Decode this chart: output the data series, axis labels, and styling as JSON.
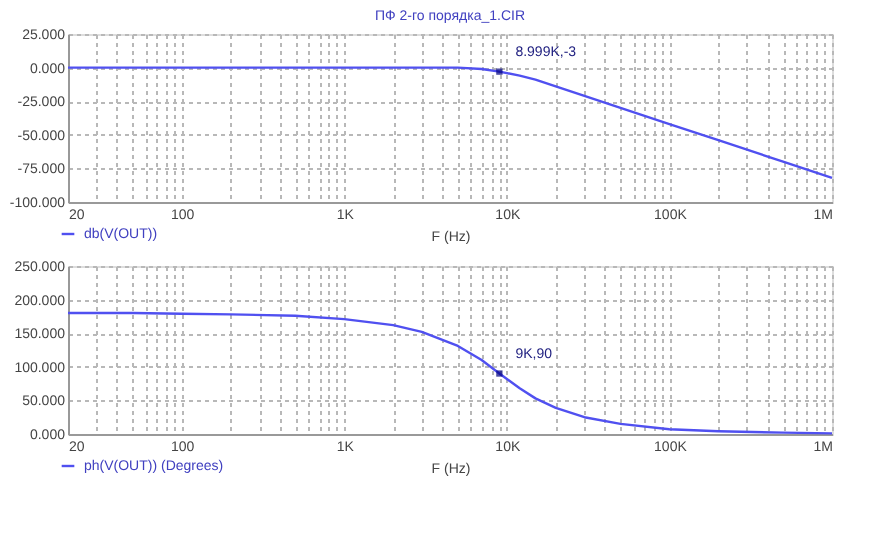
{
  "chart_data": [
    {
      "type": "line",
      "title": "ПФ 2-го порядка_1.CIR",
      "xlabel": "F (Hz)",
      "log": "x",
      "grid": true,
      "legend": "bottom left",
      "x": [
        20,
        50,
        100,
        200,
        500,
        1000,
        2000,
        3000,
        5000,
        7000,
        9000,
        12000,
        15000,
        20000,
        30000,
        50000,
        100000,
        200000,
        500000,
        1000000
      ],
      "series": [
        {
          "name": "db(V(OUT))",
          "color": "#5050f0",
          "values": [
            0,
            0,
            0,
            0,
            0,
            0,
            0,
            0,
            0,
            -1,
            -3,
            -6,
            -9,
            -14,
            -21,
            -30,
            -42,
            -54,
            -70,
            -82
          ]
        }
      ],
      "xlim": [
        20,
        1000000
      ],
      "xticks": [
        {
          "value": 20,
          "label": "20"
        },
        {
          "value": 30,
          "label": null
        },
        {
          "value": 40,
          "label": null
        },
        {
          "value": 50,
          "label": null
        },
        {
          "value": 60,
          "label": null
        },
        {
          "value": 70,
          "label": null
        },
        {
          "value": 80,
          "label": null
        },
        {
          "value": 90,
          "label": null
        },
        {
          "value": 100,
          "label": "100"
        },
        {
          "value": 200,
          "label": null
        },
        {
          "value": 300,
          "label": null
        },
        {
          "value": 400,
          "label": null
        },
        {
          "value": 500,
          "label": null
        },
        {
          "value": 600,
          "label": null
        },
        {
          "value": 700,
          "label": null
        },
        {
          "value": 800,
          "label": null
        },
        {
          "value": 900,
          "label": null
        },
        {
          "value": 1000,
          "label": "1K"
        },
        {
          "value": 2000,
          "label": null
        },
        {
          "value": 3000,
          "label": null
        },
        {
          "value": 4000,
          "label": null
        },
        {
          "value": 5000,
          "label": null
        },
        {
          "value": 6000,
          "label": null
        },
        {
          "value": 7000,
          "label": null
        },
        {
          "value": 8000,
          "label": null
        },
        {
          "value": 9000,
          "label": null
        },
        {
          "value": 10000,
          "label": "10K"
        },
        {
          "value": 20000,
          "label": null
        },
        {
          "value": 30000,
          "label": null
        },
        {
          "value": 40000,
          "label": null
        },
        {
          "value": 50000,
          "label": null
        },
        {
          "value": 60000,
          "label": null
        },
        {
          "value": 70000,
          "label": null
        },
        {
          "value": 80000,
          "label": null
        },
        {
          "value": 90000,
          "label": null
        },
        {
          "value": 100000,
          "label": "100K"
        },
        {
          "value": 200000,
          "label": null
        },
        {
          "value": 300000,
          "label": null
        },
        {
          "value": 400000,
          "label": null
        },
        {
          "value": 500000,
          "label": null
        },
        {
          "value": 600000,
          "label": null
        },
        {
          "value": 700000,
          "label": null
        },
        {
          "value": 800000,
          "label": null
        },
        {
          "value": 900000,
          "label": null
        },
        {
          "value": 1000000,
          "label": "1M"
        }
      ],
      "ylim": [
        -100,
        25
      ],
      "yticks": [
        {
          "value": -100,
          "label": "-100.000"
        },
        {
          "value": -75,
          "label": "-75.000"
        },
        {
          "value": -50,
          "label": "-50.000"
        },
        {
          "value": -25,
          "label": "-25.000"
        },
        {
          "value": 0,
          "label": "0.000"
        },
        {
          "value": 25,
          "label": "25.000"
        }
      ],
      "annotations": [
        {
          "text": "8.999K,-3",
          "x": 9000,
          "y": -3
        }
      ]
    },
    {
      "type": "line",
      "xlabel": "F (Hz)",
      "log": "x",
      "grid": true,
      "legend": "bottom left",
      "x": [
        20,
        50,
        100,
        200,
        500,
        1000,
        2000,
        3000,
        5000,
        7000,
        9000,
        12000,
        15000,
        20000,
        30000,
        50000,
        100000,
        200000,
        500000,
        1000000
      ],
      "series": [
        {
          "name": "ph(V(OUT)) (Degrees)",
          "color": "#5050f0",
          "values": [
            180,
            180,
            179,
            178,
            176,
            171,
            162,
            152,
            131,
            110,
            90,
            68,
            53,
            39,
            25,
            15,
            7,
            4,
            2,
            1
          ]
        }
      ],
      "xlim": [
        20,
        1000000
      ],
      "xticks": [
        {
          "value": 20,
          "label": "20"
        },
        {
          "value": 30,
          "label": null
        },
        {
          "value": 40,
          "label": null
        },
        {
          "value": 50,
          "label": null
        },
        {
          "value": 60,
          "label": null
        },
        {
          "value": 70,
          "label": null
        },
        {
          "value": 80,
          "label": null
        },
        {
          "value": 90,
          "label": null
        },
        {
          "value": 100,
          "label": "100"
        },
        {
          "value": 200,
          "label": null
        },
        {
          "value": 300,
          "label": null
        },
        {
          "value": 400,
          "label": null
        },
        {
          "value": 500,
          "label": null
        },
        {
          "value": 600,
          "label": null
        },
        {
          "value": 700,
          "label": null
        },
        {
          "value": 800,
          "label": null
        },
        {
          "value": 900,
          "label": null
        },
        {
          "value": 1000,
          "label": "1K"
        },
        {
          "value": 2000,
          "label": null
        },
        {
          "value": 3000,
          "label": null
        },
        {
          "value": 4000,
          "label": null
        },
        {
          "value": 5000,
          "label": null
        },
        {
          "value": 6000,
          "label": null
        },
        {
          "value": 7000,
          "label": null
        },
        {
          "value": 8000,
          "label": null
        },
        {
          "value": 9000,
          "label": null
        },
        {
          "value": 10000,
          "label": "10K"
        },
        {
          "value": 20000,
          "label": null
        },
        {
          "value": 30000,
          "label": null
        },
        {
          "value": 40000,
          "label": null
        },
        {
          "value": 50000,
          "label": null
        },
        {
          "value": 60000,
          "label": null
        },
        {
          "value": 70000,
          "label": null
        },
        {
          "value": 80000,
          "label": null
        },
        {
          "value": 90000,
          "label": null
        },
        {
          "value": 100000,
          "label": "100K"
        },
        {
          "value": 200000,
          "label": null
        },
        {
          "value": 300000,
          "label": null
        },
        {
          "value": 400000,
          "label": null
        },
        {
          "value": 500000,
          "label": null
        },
        {
          "value": 600000,
          "label": null
        },
        {
          "value": 700000,
          "label": null
        },
        {
          "value": 800000,
          "label": null
        },
        {
          "value": 900000,
          "label": null
        },
        {
          "value": 1000000,
          "label": "1M"
        }
      ],
      "ylim": [
        0,
        250
      ],
      "yticks": [
        {
          "value": 0,
          "label": "0.000"
        },
        {
          "value": 50,
          "label": "50.000"
        },
        {
          "value": 100,
          "label": "100.000"
        },
        {
          "value": 150,
          "label": "150.000"
        },
        {
          "value": 200,
          "label": "200.000"
        },
        {
          "value": 250,
          "label": "250.000"
        }
      ],
      "annotations": [
        {
          "text": "9K,90",
          "x": 9000,
          "y": 90
        }
      ]
    }
  ]
}
